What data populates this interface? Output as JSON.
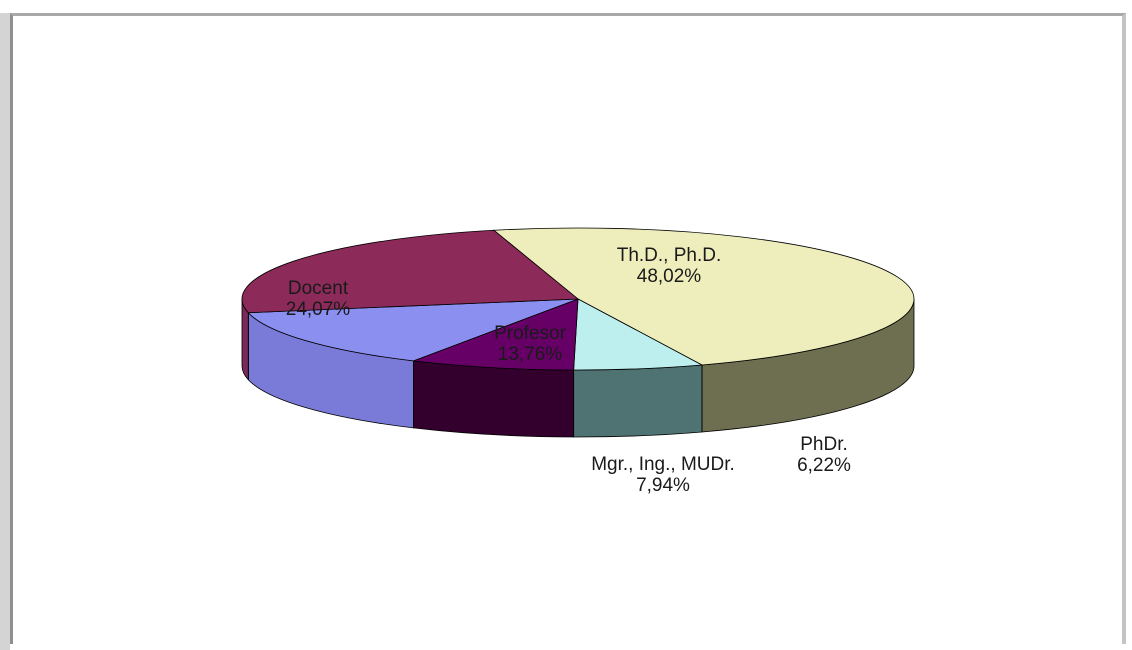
{
  "chart_data": {
    "type": "pie",
    "three_d": true,
    "title": "",
    "slices": [
      {
        "label": "Th.D., Ph.D.",
        "value": 48.02,
        "text": "48,02%",
        "top": "#eeeebc",
        "side": "#6e6e50"
      },
      {
        "label": "PhDr.",
        "value": 6.22,
        "text": "6,22%",
        "top": "#bdefef",
        "side": "#4f7373"
      },
      {
        "label": "Mgr., Ing., MUDr.",
        "value": 7.94,
        "text": "7,94%",
        "top": "#660066",
        "side": "#33002e"
      },
      {
        "label": "Profesor",
        "value": 13.76,
        "text": "13,76%",
        "top": "#8b8ff0",
        "side": "#7a7ad8"
      },
      {
        "label": "Docent",
        "value": 24.07,
        "text": "24,07%",
        "top": "#8c2b5a",
        "side": "#7a2a56"
      }
    ],
    "legend": "none"
  }
}
